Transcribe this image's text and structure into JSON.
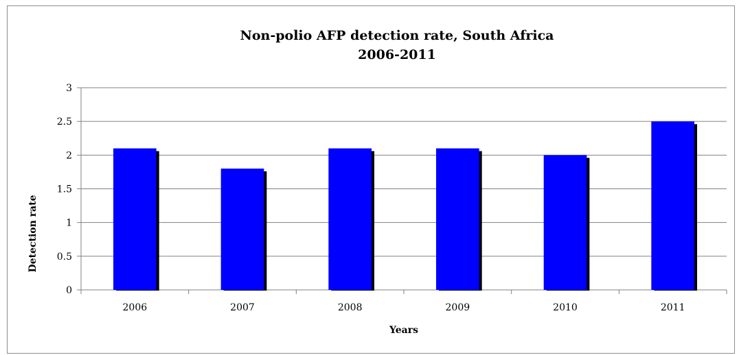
{
  "chart_data": {
    "type": "bar",
    "title_lines": [
      "Non-polio AFP detection rate, South Africa",
      "2006-2011"
    ],
    "xlabel": "Years",
    "ylabel": "Detection rate",
    "categories": [
      "2006",
      "2007",
      "2008",
      "2009",
      "2010",
      "2011"
    ],
    "values": [
      2.1,
      1.8,
      2.1,
      2.1,
      2.0,
      2.5
    ],
    "ylim": [
      0,
      3
    ],
    "yticks": [
      "0",
      "0.5",
      "1",
      "1.5",
      "2",
      "2.5",
      "3"
    ],
    "ytick_values": [
      0,
      0.5,
      1,
      1.5,
      2,
      2.5,
      3
    ],
    "grid": true,
    "legend": "none",
    "colors": {
      "bar": "#0000ff",
      "bar_shadow": "#000000",
      "gridline": "#808080",
      "axis": "#808080"
    }
  }
}
